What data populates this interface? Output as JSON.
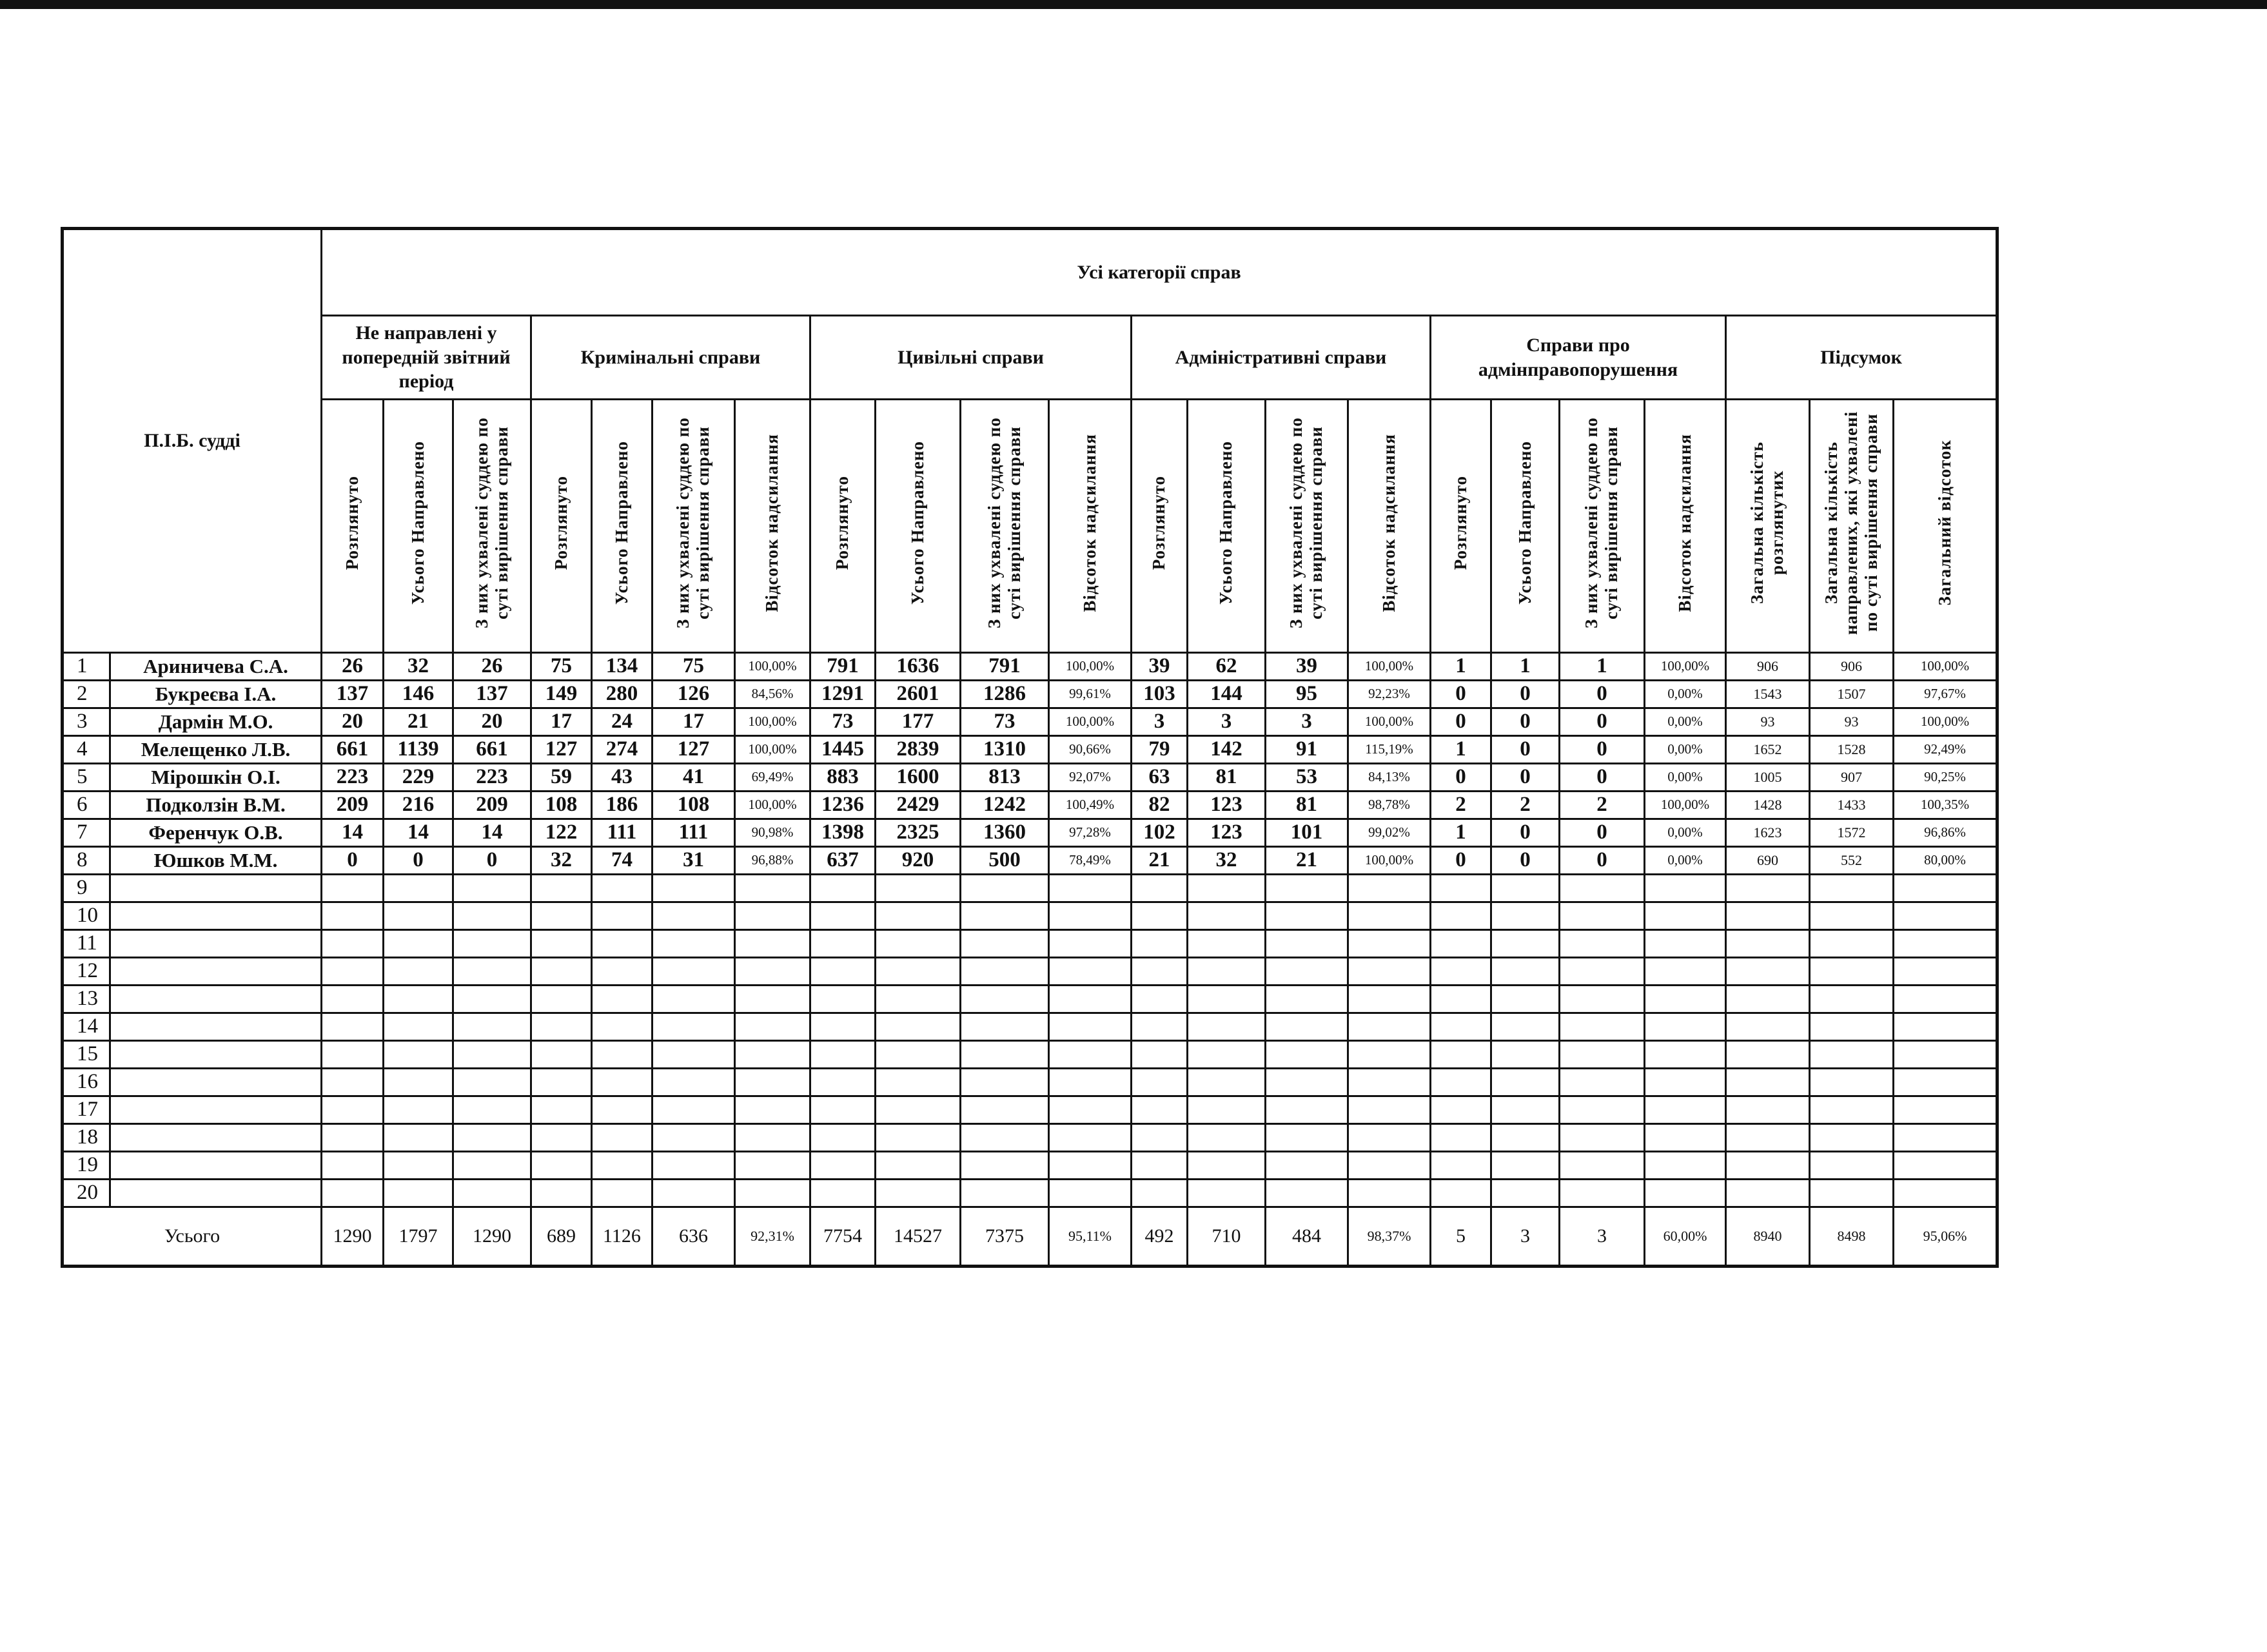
{
  "header": {
    "name_column": "П.І.Б. судді",
    "title": "Усі категорії справ",
    "groups": [
      {
        "label": "Не направлені у попередній звітний період",
        "subs": [
          "Розглянуто",
          "Усього Направлено",
          "З них ухвалені суддею по суті вирішення справи"
        ]
      },
      {
        "label": "Кримінальні справи",
        "subs": [
          "Розглянуто",
          "Усього Направлено",
          "З них ухвалені суддею по суті вирішення справи",
          "Відсоток надсилання"
        ]
      },
      {
        "label": "Цивільні справи",
        "subs": [
          "Розглянуто",
          "Усього Направлено",
          "З них ухвалені суддею по суті вирішення справи",
          "Відсоток надсилання"
        ]
      },
      {
        "label": "Адміністративні справи",
        "subs": [
          "Розглянуто",
          "Усього Направлено",
          "З них ухвалені суддею по суті вирішення справи",
          "Відсоток надсилання"
        ]
      },
      {
        "label": "Справи про адмінправопорушення",
        "subs": [
          "Розглянуто",
          "Усього Направлено",
          "З них ухвалені суддею по суті вирішення справи",
          "Відсоток надсилання"
        ]
      },
      {
        "label": "Підсумок",
        "subs": [
          "Загальна кількість розглянутих",
          "Загальна кількість направлених, які ухвалені по суті вирішення справи",
          "Загальний відсоток"
        ]
      }
    ]
  },
  "rows": [
    {
      "num": "1",
      "name": "Ариничева С.А.",
      "values": [
        "26",
        "32",
        "26",
        "75",
        "134",
        "75",
        "100,00%",
        "791",
        "1636",
        "791",
        "100,00%",
        "39",
        "62",
        "39",
        "100,00%",
        "1",
        "1",
        "1",
        "100,00%",
        "906",
        "906",
        "100,00%"
      ]
    },
    {
      "num": "2",
      "name": "Букреєва І.А.",
      "values": [
        "137",
        "146",
        "137",
        "149",
        "280",
        "126",
        "84,56%",
        "1291",
        "2601",
        "1286",
        "99,61%",
        "103",
        "144",
        "95",
        "92,23%",
        "0",
        "0",
        "0",
        "0,00%",
        "1543",
        "1507",
        "97,67%"
      ]
    },
    {
      "num": "3",
      "name": "Дармін М.О.",
      "values": [
        "20",
        "21",
        "20",
        "17",
        "24",
        "17",
        "100,00%",
        "73",
        "177",
        "73",
        "100,00%",
        "3",
        "3",
        "3",
        "100,00%",
        "0",
        "0",
        "0",
        "0,00%",
        "93",
        "93",
        "100,00%"
      ]
    },
    {
      "num": "4",
      "name": "Мелещенко Л.В.",
      "values": [
        "661",
        "1139",
        "661",
        "127",
        "274",
        "127",
        "100,00%",
        "1445",
        "2839",
        "1310",
        "90,66%",
        "79",
        "142",
        "91",
        "115,19%",
        "1",
        "0",
        "0",
        "0,00%",
        "1652",
        "1528",
        "92,49%"
      ]
    },
    {
      "num": "5",
      "name": "Мірошкін О.І.",
      "values": [
        "223",
        "229",
        "223",
        "59",
        "43",
        "41",
        "69,49%",
        "883",
        "1600",
        "813",
        "92,07%",
        "63",
        "81",
        "53",
        "84,13%",
        "0",
        "0",
        "0",
        "0,00%",
        "1005",
        "907",
        "90,25%"
      ]
    },
    {
      "num": "6",
      "name": "Подколзін В.М.",
      "values": [
        "209",
        "216",
        "209",
        "108",
        "186",
        "108",
        "100,00%",
        "1236",
        "2429",
        "1242",
        "100,49%",
        "82",
        "123",
        "81",
        "98,78%",
        "2",
        "2",
        "2",
        "100,00%",
        "1428",
        "1433",
        "100,35%"
      ]
    },
    {
      "num": "7",
      "name": "Ференчук О.В.",
      "values": [
        "14",
        "14",
        "14",
        "122",
        "111",
        "111",
        "90,98%",
        "1398",
        "2325",
        "1360",
        "97,28%",
        "102",
        "123",
        "101",
        "99,02%",
        "1",
        "0",
        "0",
        "0,00%",
        "1623",
        "1572",
        "96,86%"
      ]
    },
    {
      "num": "8",
      "name": "Юшков М.М.",
      "values": [
        "0",
        "0",
        "0",
        "32",
        "74",
        "31",
        "96,88%",
        "637",
        "920",
        "500",
        "78,49%",
        "21",
        "32",
        "21",
        "100,00%",
        "0",
        "0",
        "0",
        "0,00%",
        "690",
        "552",
        "80,00%"
      ]
    },
    {
      "num": "9"
    },
    {
      "num": "10"
    },
    {
      "num": "11"
    },
    {
      "num": "12"
    },
    {
      "num": "13"
    },
    {
      "num": "14"
    },
    {
      "num": "15"
    },
    {
      "num": "16"
    },
    {
      "num": "17"
    },
    {
      "num": "18"
    },
    {
      "num": "19"
    },
    {
      "num": "20"
    }
  ],
  "totals": {
    "label": "Усього",
    "values": [
      "1290",
      "1797",
      "1290",
      "689",
      "1126",
      "636",
      "92,31%",
      "7754",
      "14527",
      "7375",
      "95,11%",
      "492",
      "710",
      "484",
      "98,37%",
      "5",
      "3",
      "3",
      "60,00%",
      "8940",
      "8498",
      "95,06%"
    ]
  }
}
